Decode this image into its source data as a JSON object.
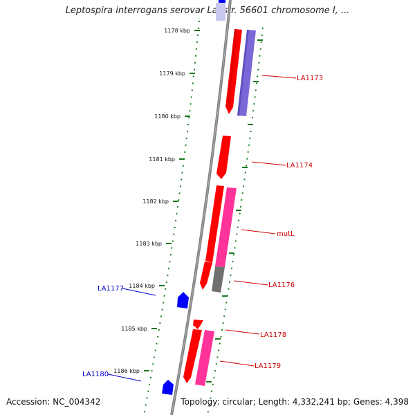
{
  "title": "Leptospira interrogans serovar Lai str. 56601 chromosome I, ...",
  "accession": "Accession: NC_004342",
  "topology": "Topology: circular; Length: 4,332,241 bp; Genes: 4,398",
  "ruler_labels": [
    "1178 kbp",
    "1179 kbp",
    "1180 kbp",
    "1181 kbp",
    "1182 kbp",
    "1183 kbp",
    "1184 kbp",
    "1185 kbp",
    "1186 kbp"
  ],
  "colors": {
    "forward_gene": "#ff0000",
    "reverse_gene": "#0000ff",
    "cds_purple": "#7b68d8",
    "cds_pink": "#ff3399",
    "cds_gray": "#707070",
    "backbone": "#808080",
    "ruler": "#1a7a1a",
    "forward_label": "#cc0000",
    "reverse_label": "#0000cc"
  },
  "gene_labels": [
    {
      "text": "LA1173",
      "strand": "forward"
    },
    {
      "text": "LA1174",
      "strand": "forward"
    },
    {
      "text": "mutL",
      "strand": "forward"
    },
    {
      "text": "LA1176",
      "strand": "forward"
    },
    {
      "text": "LA1178",
      "strand": "forward"
    },
    {
      "text": "LA1179",
      "strand": "forward"
    },
    {
      "text": "LA1177",
      "strand": "reverse"
    },
    {
      "text": "LA1180",
      "strand": "reverse"
    }
  ]
}
